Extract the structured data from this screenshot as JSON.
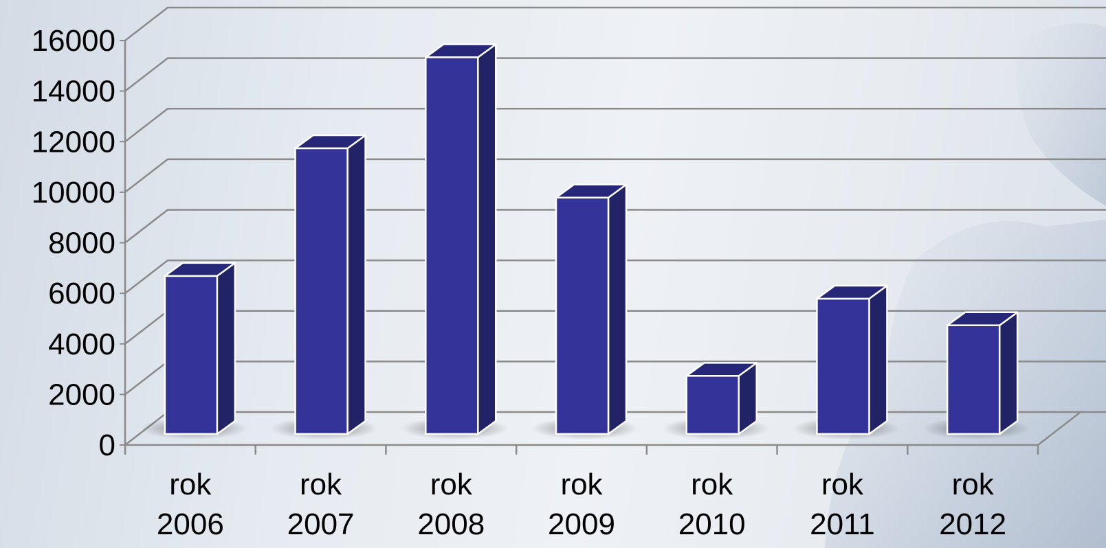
{
  "chart_data": {
    "type": "bar",
    "title": "",
    "xlabel": "",
    "ylabel": "",
    "categories": [
      [
        "rok",
        "2006"
      ],
      [
        "rok",
        "2007"
      ],
      [
        "rok",
        "2008"
      ],
      [
        "rok",
        "2009"
      ],
      [
        "rok",
        "2010"
      ],
      [
        "rok",
        "2011"
      ],
      [
        "rok",
        "2012"
      ]
    ],
    "values": [
      6250,
      11300,
      14900,
      9350,
      2300,
      5350,
      4300
    ],
    "ylim": [
      0,
      16000
    ],
    "yticks": [
      "0",
      "2000",
      "4000",
      "6000",
      "8000",
      "10000",
      "12000",
      "14000",
      "16000"
    ],
    "grid": true,
    "bar_3d": true,
    "colors": {
      "bar_front": "#333399",
      "bar_side": "#222266",
      "bar_top": "#27277a",
      "grid": "#8a8a8a"
    }
  }
}
